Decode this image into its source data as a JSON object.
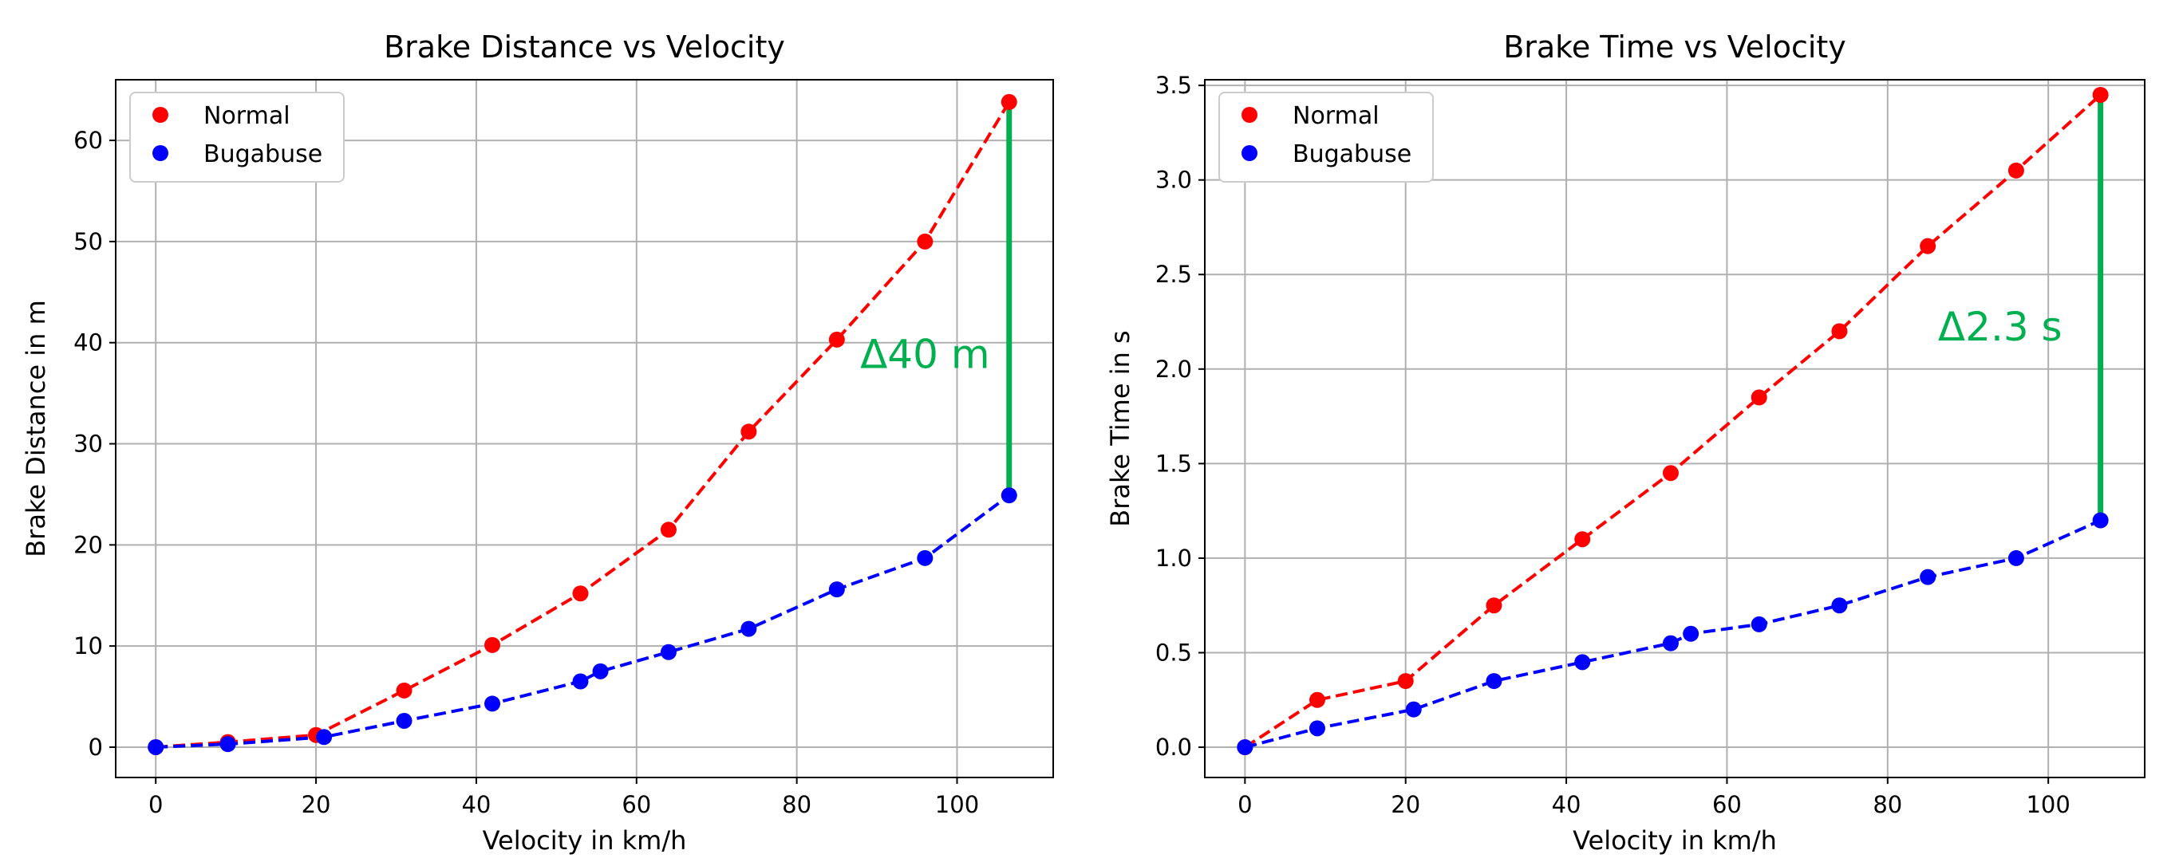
{
  "figure": {
    "background": "#ffffff"
  },
  "chart_data": [
    {
      "type": "line",
      "title": "Brake Distance vs Velocity",
      "xlabel": "Velocity in km/h",
      "ylabel": "Brake Distance in m",
      "xlim": [
        -5,
        112
      ],
      "ylim": [
        -3,
        66
      ],
      "xticks": [
        0,
        20,
        40,
        60,
        80,
        100
      ],
      "yticks": [
        0,
        10,
        20,
        30,
        40,
        50,
        60
      ],
      "grid": true,
      "legend_position": "top-left",
      "series": [
        {
          "name": "Normal",
          "color": "#ff0000",
          "linestyle": "dashed",
          "points": [
            [
              0,
              0
            ],
            [
              9,
              0.5
            ],
            [
              20,
              1.2
            ],
            [
              31,
              5.6
            ],
            [
              42,
              10.1
            ],
            [
              53,
              15.2
            ],
            [
              64,
              21.5
            ],
            [
              74,
              31.2
            ],
            [
              85,
              40.3
            ],
            [
              96,
              50
            ],
            [
              106.5,
              63.8
            ]
          ]
        },
        {
          "name": "Bugabuse",
          "color": "#0000ff",
          "linestyle": "dashed",
          "points": [
            [
              0,
              0
            ],
            [
              9,
              0.3
            ],
            [
              21,
              1
            ],
            [
              31,
              2.6
            ],
            [
              42,
              4.3
            ],
            [
              53,
              6.5
            ],
            [
              55.5,
              7.5
            ],
            [
              64,
              9.4
            ],
            [
              74,
              11.7
            ],
            [
              85,
              15.6
            ],
            [
              96,
              18.7
            ],
            [
              106.5,
              24.9
            ]
          ]
        }
      ],
      "annotation": {
        "text": "Δ40 m",
        "color": "#00b050",
        "x": 106.5,
        "y_from": 24.9,
        "y_to": 63.8,
        "text_at": [
          96,
          37.5
        ]
      }
    },
    {
      "type": "line",
      "title": "Brake Time vs Velocity",
      "xlabel": "Velocity in km/h",
      "ylabel": "Brake Time in s",
      "xlim": [
        -5,
        112
      ],
      "ylim": [
        -0.16,
        3.53
      ],
      "xticks": [
        0,
        20,
        40,
        60,
        80,
        100
      ],
      "yticks": [
        0.0,
        0.5,
        1.0,
        1.5,
        2.0,
        2.5,
        3.0,
        3.5
      ],
      "ytick_labels": [
        "0.0",
        "0.5",
        "1.0",
        "1.5",
        "2.0",
        "2.5",
        "3.0",
        "3.5"
      ],
      "grid": true,
      "legend_position": "top-left",
      "series": [
        {
          "name": "Normal",
          "color": "#ff0000",
          "linestyle": "dashed",
          "points": [
            [
              0,
              0
            ],
            [
              9,
              0.25
            ],
            [
              20,
              0.35
            ],
            [
              31,
              0.75
            ],
            [
              42,
              1.1
            ],
            [
              53,
              1.45
            ],
            [
              64,
              1.85
            ],
            [
              74,
              2.2
            ],
            [
              85,
              2.65
            ],
            [
              96,
              3.05
            ],
            [
              106.5,
              3.45
            ]
          ]
        },
        {
          "name": "Bugabuse",
          "color": "#0000ff",
          "linestyle": "dashed",
          "points": [
            [
              0,
              0
            ],
            [
              9,
              0.1
            ],
            [
              21,
              0.2
            ],
            [
              31,
              0.35
            ],
            [
              42,
              0.45
            ],
            [
              53,
              0.55
            ],
            [
              55.5,
              0.6
            ],
            [
              64,
              0.65
            ],
            [
              74,
              0.75
            ],
            [
              85,
              0.9
            ],
            [
              96,
              1.0
            ],
            [
              106.5,
              1.2
            ]
          ]
        }
      ],
      "annotation": {
        "text": "Δ2.3 s",
        "color": "#00b050",
        "x": 106.5,
        "y_from": 1.2,
        "y_to": 3.45,
        "text_at": [
          94,
          2.15
        ]
      }
    }
  ]
}
